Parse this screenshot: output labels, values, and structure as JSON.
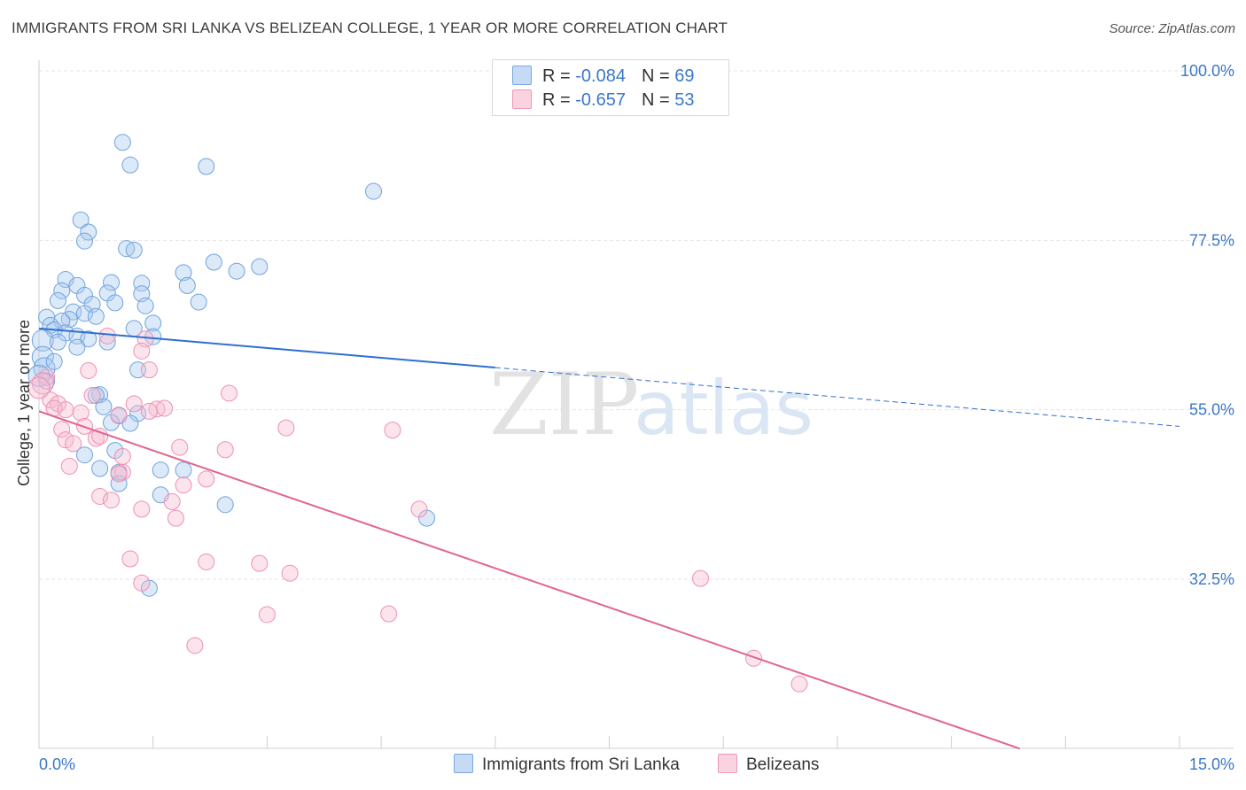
{
  "title": "IMMIGRANTS FROM SRI LANKA VS BELIZEAN COLLEGE, 1 YEAR OR MORE CORRELATION CHART",
  "source": "Source: ZipAtlas.com",
  "watermark": {
    "zip": "ZIP",
    "atlas": "atlas"
  },
  "legend_top": [
    {
      "r_label": "R = ",
      "r_value": "-0.084",
      "n_label": "N = ",
      "n_value": "69",
      "color": "#a8c8ee"
    },
    {
      "r_label": "R = ",
      "r_value": "-0.657",
      "n_label": "N = ",
      "n_value": "53",
      "color": "#f6bccf"
    }
  ],
  "legend_bottom": [
    {
      "label": "Immigrants from Sri Lanka",
      "color": "#a8c8ee"
    },
    {
      "label": "Belizeans",
      "color": "#f6bccf"
    }
  ],
  "chart_data": {
    "type": "scatter",
    "xlabel": "",
    "ylabel": "College, 1 year or more",
    "xlim": [
      0,
      15
    ],
    "ylim": [
      10,
      103
    ],
    "x_tick_labels": [
      "0.0%",
      "15.0%"
    ],
    "y_ticks": [
      32.5,
      55.0,
      77.5,
      100.0
    ],
    "y_tick_labels": [
      "32.5%",
      "55.0%",
      "77.5%",
      "100.0%"
    ],
    "grid": true,
    "series": [
      {
        "name": "Immigrants from Sri Lanka",
        "color": "#6fa3e0",
        "trend": {
          "x0": 0,
          "y0": 65.8,
          "x1": 6.0,
          "y1": 60.6,
          "dash_x1": 15.0,
          "dash_y1": 52.8,
          "color": "#2f6fd0"
        },
        "points": [
          [
            1.1,
            90.5
          ],
          [
            1.2,
            87.5
          ],
          [
            2.2,
            87.3
          ],
          [
            4.4,
            84.0
          ],
          [
            0.55,
            80.2
          ],
          [
            0.65,
            78.6
          ],
          [
            0.6,
            77.4
          ],
          [
            1.15,
            76.4
          ],
          [
            1.25,
            76.2
          ],
          [
            2.3,
            74.6
          ],
          [
            2.6,
            73.4
          ],
          [
            2.9,
            74.0
          ],
          [
            1.9,
            73.2
          ],
          [
            0.35,
            72.3
          ],
          [
            0.5,
            71.5
          ],
          [
            0.95,
            71.9
          ],
          [
            1.35,
            71.8
          ],
          [
            1.95,
            71.5
          ],
          [
            0.3,
            70.8
          ],
          [
            0.6,
            70.2
          ],
          [
            0.9,
            70.5
          ],
          [
            1.35,
            70.4
          ],
          [
            0.25,
            69.5
          ],
          [
            0.7,
            69.0
          ],
          [
            1.0,
            69.2
          ],
          [
            1.4,
            68.8
          ],
          [
            2.1,
            69.3
          ],
          [
            0.45,
            68.0
          ],
          [
            0.6,
            67.8
          ],
          [
            0.75,
            67.4
          ],
          [
            0.4,
            67.0
          ],
          [
            0.3,
            66.8
          ],
          [
            0.1,
            67.3
          ],
          [
            1.5,
            66.5
          ],
          [
            0.15,
            66.2
          ],
          [
            0.2,
            65.6
          ],
          [
            0.35,
            65.2
          ],
          [
            0.5,
            64.8
          ],
          [
            1.25,
            65.8
          ],
          [
            0.05,
            64.2
          ],
          [
            0.25,
            64.0
          ],
          [
            0.65,
            64.4
          ],
          [
            1.5,
            64.7
          ],
          [
            0.5,
            63.3
          ],
          [
            0.05,
            62.0
          ],
          [
            0.07,
            60.5
          ],
          [
            1.3,
            60.3
          ],
          [
            0.8,
            57.0
          ],
          [
            0.75,
            56.9
          ],
          [
            0.85,
            55.4
          ],
          [
            1.05,
            54.2
          ],
          [
            1.3,
            54.5
          ],
          [
            0.95,
            53.3
          ],
          [
            1.2,
            53.2
          ],
          [
            1.0,
            49.6
          ],
          [
            0.8,
            47.2
          ],
          [
            1.05,
            46.7
          ],
          [
            1.6,
            47.0
          ],
          [
            1.9,
            47.0
          ],
          [
            1.05,
            45.2
          ],
          [
            1.6,
            43.7
          ],
          [
            2.45,
            42.4
          ],
          [
            5.1,
            40.6
          ],
          [
            1.45,
            31.3
          ],
          [
            0.6,
            49.0
          ],
          [
            0.1,
            58.8
          ],
          [
            0.2,
            61.4
          ],
          [
            0.0,
            59.5
          ],
          [
            0.9,
            64.0
          ]
        ]
      },
      {
        "name": "Belizeans",
        "color": "#f08fb0",
        "trend": {
          "x0": 0,
          "y0": 54.8,
          "x1": 12.9,
          "y1": 10.0,
          "color": "#e0668f"
        },
        "points": [
          [
            0.9,
            64.8
          ],
          [
            1.4,
            64.4
          ],
          [
            1.35,
            62.8
          ],
          [
            0.65,
            60.2
          ],
          [
            1.45,
            60.3
          ],
          [
            0.1,
            59.3
          ],
          [
            2.5,
            57.2
          ],
          [
            0.7,
            56.9
          ],
          [
            0.15,
            56.3
          ],
          [
            0.25,
            55.8
          ],
          [
            1.25,
            55.8
          ],
          [
            0.2,
            55.2
          ],
          [
            0.35,
            55.0
          ],
          [
            1.55,
            55.1
          ],
          [
            1.65,
            55.2
          ],
          [
            1.45,
            54.8
          ],
          [
            0.55,
            54.6
          ],
          [
            1.05,
            54.3
          ],
          [
            0.6,
            52.8
          ],
          [
            3.25,
            52.6
          ],
          [
            4.65,
            52.3
          ],
          [
            0.3,
            52.4
          ],
          [
            0.75,
            51.2
          ],
          [
            0.35,
            51.0
          ],
          [
            1.85,
            50.0
          ],
          [
            2.45,
            49.7
          ],
          [
            1.1,
            48.8
          ],
          [
            0.4,
            47.5
          ],
          [
            1.1,
            46.7
          ],
          [
            2.2,
            45.8
          ],
          [
            1.9,
            45.0
          ],
          [
            0.8,
            43.5
          ],
          [
            0.95,
            43.0
          ],
          [
            1.75,
            42.8
          ],
          [
            1.35,
            41.8
          ],
          [
            5.0,
            41.8
          ],
          [
            1.8,
            40.6
          ],
          [
            1.2,
            35.2
          ],
          [
            2.2,
            34.8
          ],
          [
            2.9,
            34.6
          ],
          [
            3.3,
            33.3
          ],
          [
            8.7,
            32.6
          ],
          [
            1.35,
            32.0
          ],
          [
            3.0,
            27.8
          ],
          [
            4.6,
            27.9
          ],
          [
            2.05,
            23.7
          ],
          [
            9.4,
            22.0
          ],
          [
            10.0,
            18.6
          ],
          [
            0.05,
            58.5
          ],
          [
            0.0,
            57.9
          ],
          [
            0.45,
            50.5
          ],
          [
            1.05,
            46.5
          ],
          [
            0.8,
            51.5
          ]
        ]
      }
    ]
  }
}
